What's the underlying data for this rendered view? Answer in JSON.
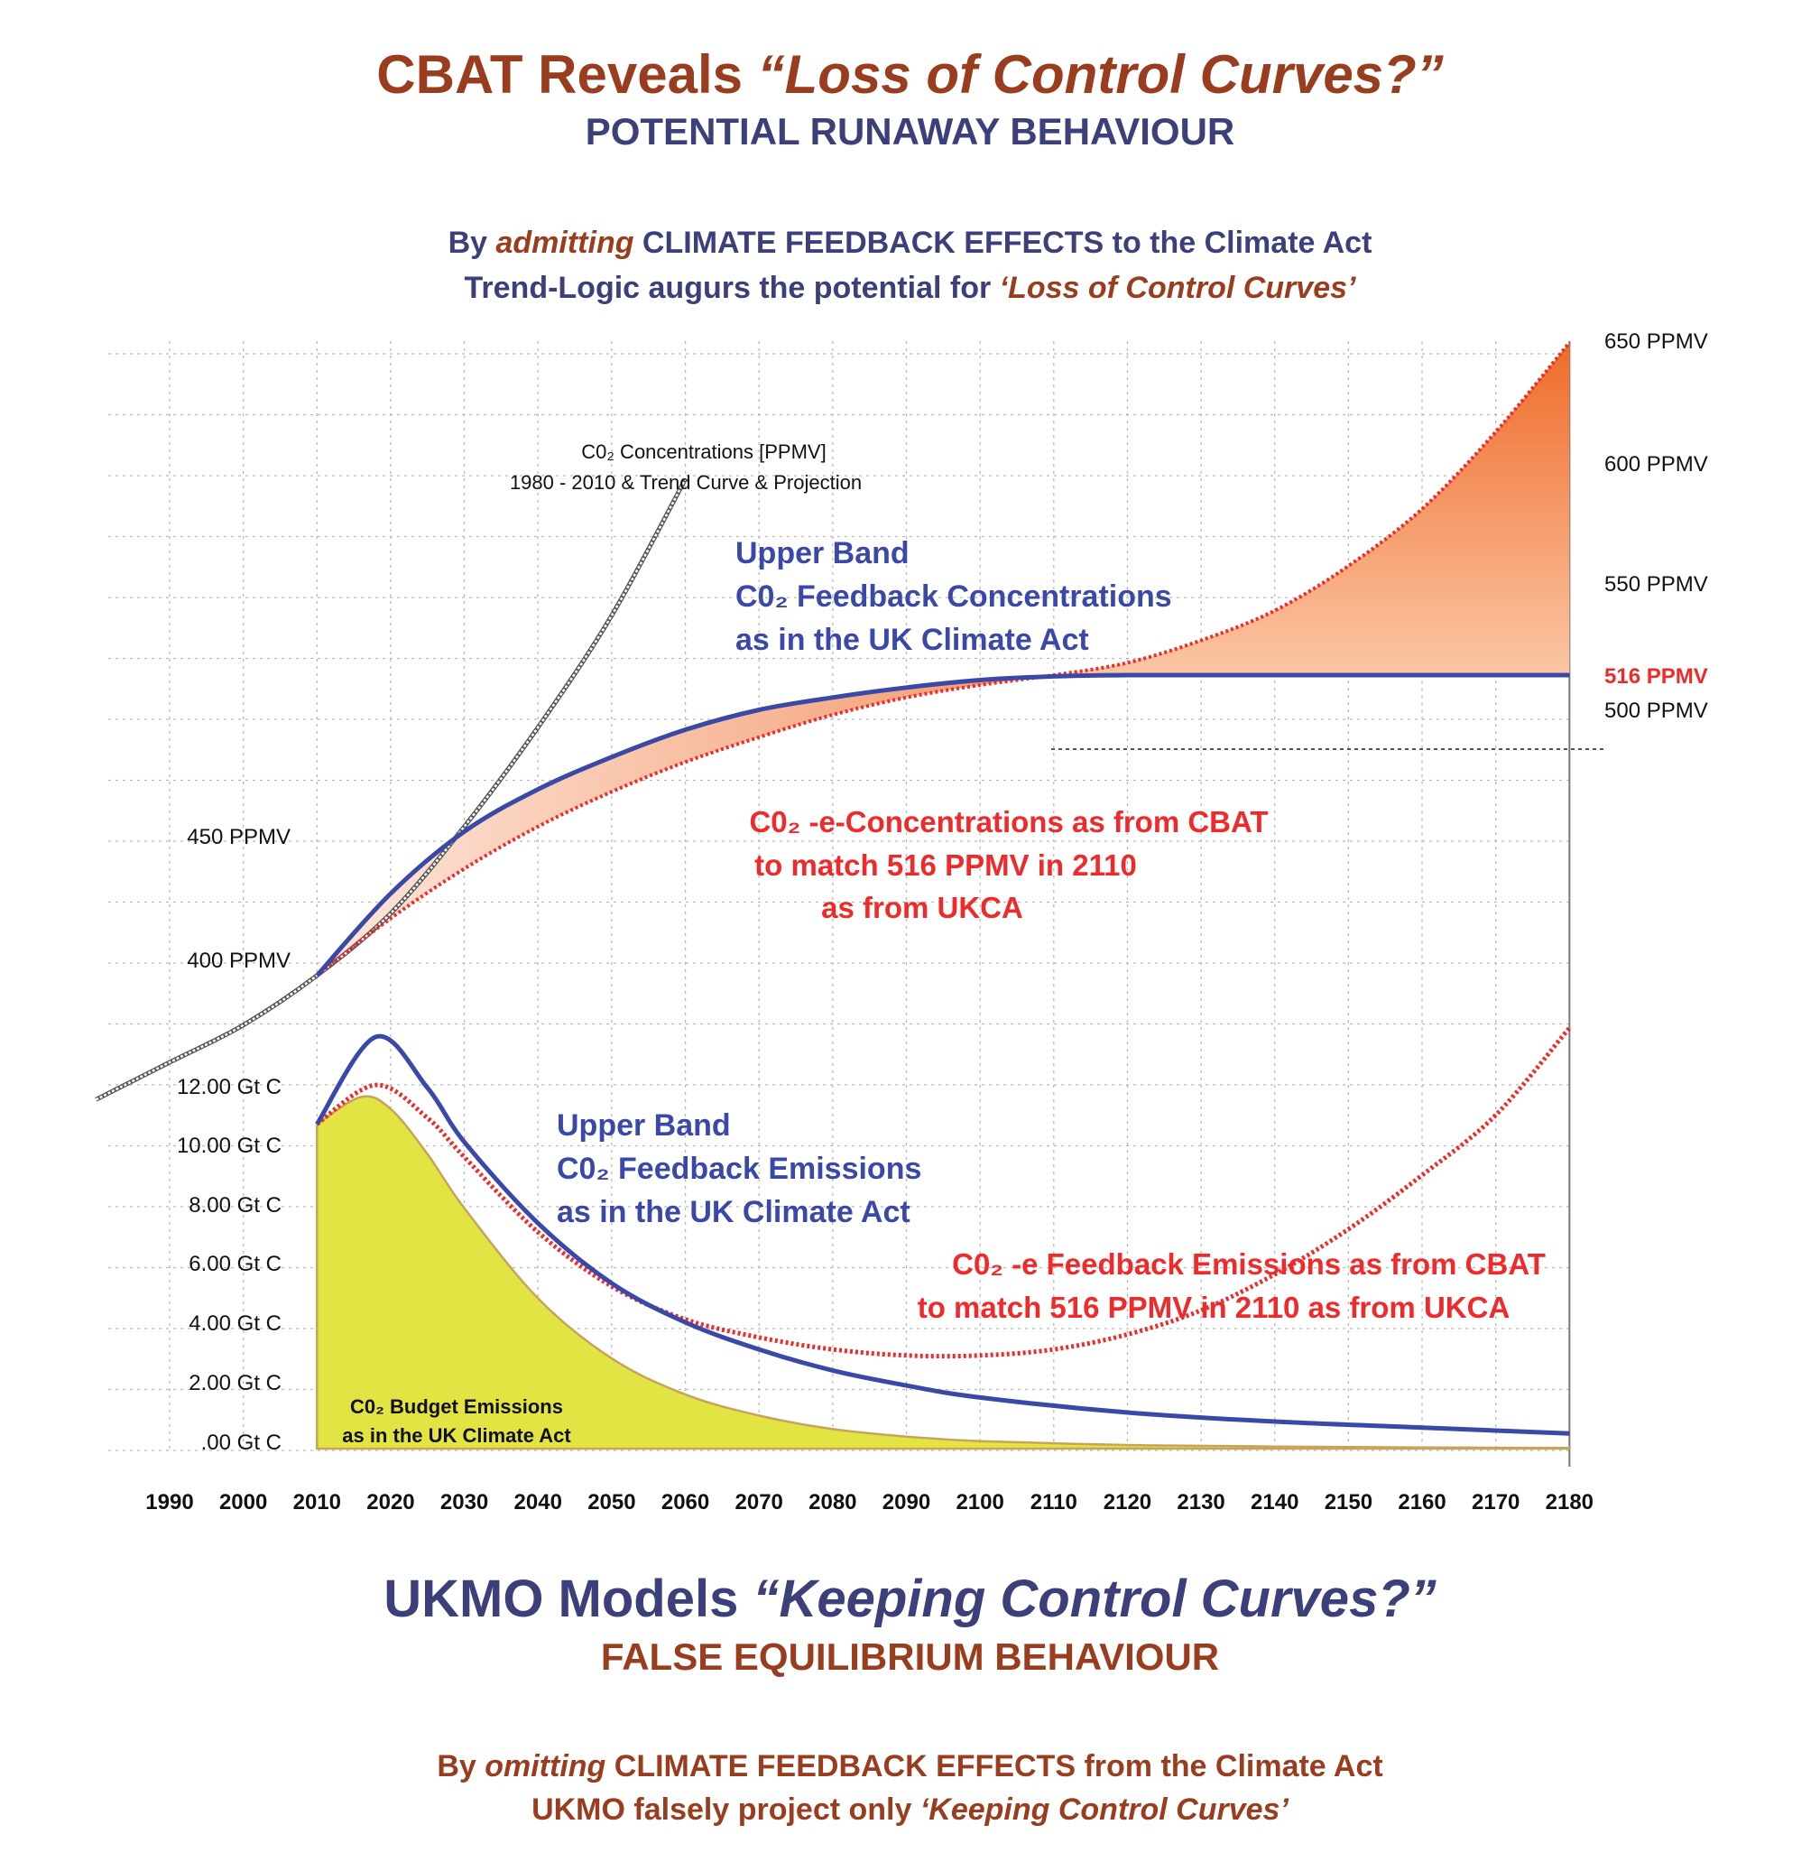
{
  "header": {
    "title_a": "CBAT Reveals ",
    "title_b": "“Loss of Control Curves?”",
    "subtitle": "POTENTIAL RUNAWAY BEHAVIOUR",
    "line1_a": "By ",
    "line1_b": "admitting",
    "line1_c": " CLIMATE FEEDBACK EFFECTS to the Climate Act",
    "line2_a": "Trend-Logic augurs the potential for ",
    "line2_b": "‘Loss of Control Curves’"
  },
  "footer": {
    "title_a": "UKMO Models ",
    "title_b": "“Keeping Control Curves?”",
    "subtitle": "FALSE EQUILIBRIUM BEHAVIOUR",
    "line1_a": "By ",
    "line1_b": "omitting",
    "line1_c": " CLIMATE FEEDBACK EFFECTS from the Climate Act",
    "line2_a": "UKMO falsely project only ",
    "line2_b": "‘Keeping Control Curves’"
  },
  "annotations": {
    "co2_hist_1": "C0₂ Concentrations [PPMV]",
    "co2_hist_2": "1980 - 2010 & Trend Curve & Projection",
    "upper_conc_1": "Upper Band",
    "upper_conc_2": "C0₂ Feedback Concentrations",
    "upper_conc_3": "as in the UK Climate Act",
    "cbat_conc_1": "C0₂ -e-Concentrations as from CBAT",
    "cbat_conc_2": "to match 516 PPMV in 2110",
    "cbat_conc_3": "as from UKCA",
    "upper_em_1": "Upper Band",
    "upper_em_2": "C0₂ Feedback Emissions",
    "upper_em_3": "as in the UK Climate Act",
    "cbat_em_1": "C0₂ -e Feedback Emissions as from CBAT",
    "cbat_em_2": "to match 516 PPMV in 2110 as from UKCA",
    "budget_1": "C0₂ Budget Emissions",
    "budget_2": "as in the UK Climate Act"
  },
  "colors": {
    "blue": "#3a48a8",
    "red": "#ee2a2a",
    "orange_fill": "#f07a3a",
    "yellow_fill": "#e2e444",
    "title_brown": "#9a3d1f",
    "title_navy": "#3b3f7a"
  },
  "chart_data": {
    "type": "line",
    "x_ticks": [
      "1990",
      "2000",
      "2010",
      "2020",
      "2030",
      "2040",
      "2050",
      "2060",
      "2070",
      "2080",
      "2090",
      "2100",
      "2110",
      "2120",
      "2130",
      "2140",
      "2150",
      "2160",
      "2170",
      "2180"
    ],
    "ppmv_ticks_right": [
      "650 PPMV",
      "600 PPMV",
      "550 PPMV",
      "500 PPMV"
    ],
    "ppmv_ticks_left": [
      "450 PPMV",
      "400 PPMV"
    ],
    "ppmv_marker": "516 PPMV",
    "emission_ticks": [
      "12.00 Gt C",
      "10.00 Gt C",
      "8.00 Gt C",
      "6.00 Gt C",
      "4.00 Gt C",
      "2.00 Gt C",
      ".00 Gt C"
    ],
    "concentration_series": [
      {
        "name": "C0₂ Concentrations [PPMV]",
        "x": [
          1980,
          1990,
          2000,
          2010,
          2020,
          2030,
          2040,
          2050,
          2060
        ],
        "y": [
          345,
          360,
          375,
          395,
          420,
          455,
          495,
          540,
          595
        ]
      },
      {
        "name": "Upper Band C0₂ Feedback Concentrations",
        "x": [
          2010,
          2020,
          2030,
          2040,
          2050,
          2060,
          2070,
          2080,
          2090,
          2100,
          2110,
          2120,
          2140,
          2160,
          2180
        ],
        "y": [
          395,
          428,
          453,
          470,
          483,
          494,
          502,
          507,
          511,
          514,
          515.5,
          516,
          516,
          516,
          516
        ]
      },
      {
        "name": "C0₂ -e-Concentrations as from CBAT",
        "x": [
          2010,
          2020,
          2030,
          2040,
          2050,
          2060,
          2070,
          2080,
          2090,
          2100,
          2110,
          2120,
          2130,
          2140,
          2150,
          2160,
          2170,
          2180
        ],
        "y": [
          395,
          418,
          438,
          455,
          469,
          481,
          491,
          500,
          507,
          512,
          516,
          521,
          530,
          542,
          560,
          583,
          614,
          650
        ]
      }
    ],
    "emission_series": [
      {
        "name": "Upper Band C0₂ Feedback Emissions",
        "x": [
          2010,
          2018,
          2025,
          2030,
          2040,
          2050,
          2060,
          2070,
          2080,
          2090,
          2100,
          2120,
          2140,
          2160,
          2180
        ],
        "y": [
          10.8,
          13.7,
          12.0,
          10.2,
          7.5,
          5.5,
          4.2,
          3.3,
          2.6,
          2.1,
          1.7,
          1.2,
          0.9,
          0.7,
          0.5
        ]
      },
      {
        "name": "C0₂ -e Feedback Emissions as from CBAT",
        "x": [
          2010,
          2018,
          2025,
          2030,
          2040,
          2050,
          2060,
          2070,
          2080,
          2090,
          2100,
          2110,
          2120,
          2130,
          2140,
          2150,
          2160,
          2170,
          2180
        ],
        "y": [
          10.8,
          12.1,
          11.0,
          9.7,
          7.2,
          5.4,
          4.3,
          3.7,
          3.3,
          3.1,
          3.1,
          3.3,
          3.8,
          4.6,
          5.8,
          7.3,
          9.1,
          11.1,
          14.0
        ]
      },
      {
        "name": "C0₂ Budget Emissions",
        "x": [
          2010,
          2016,
          2020,
          2025,
          2030,
          2040,
          2050,
          2060,
          2070,
          2080,
          2090,
          2100,
          2120,
          2140,
          2160,
          2180
        ],
        "y": [
          10.8,
          11.7,
          11.3,
          9.8,
          8.0,
          5.0,
          3.0,
          1.8,
          1.1,
          0.65,
          0.4,
          0.25,
          0.12,
          0.07,
          0.04,
          0.02
        ]
      }
    ]
  }
}
